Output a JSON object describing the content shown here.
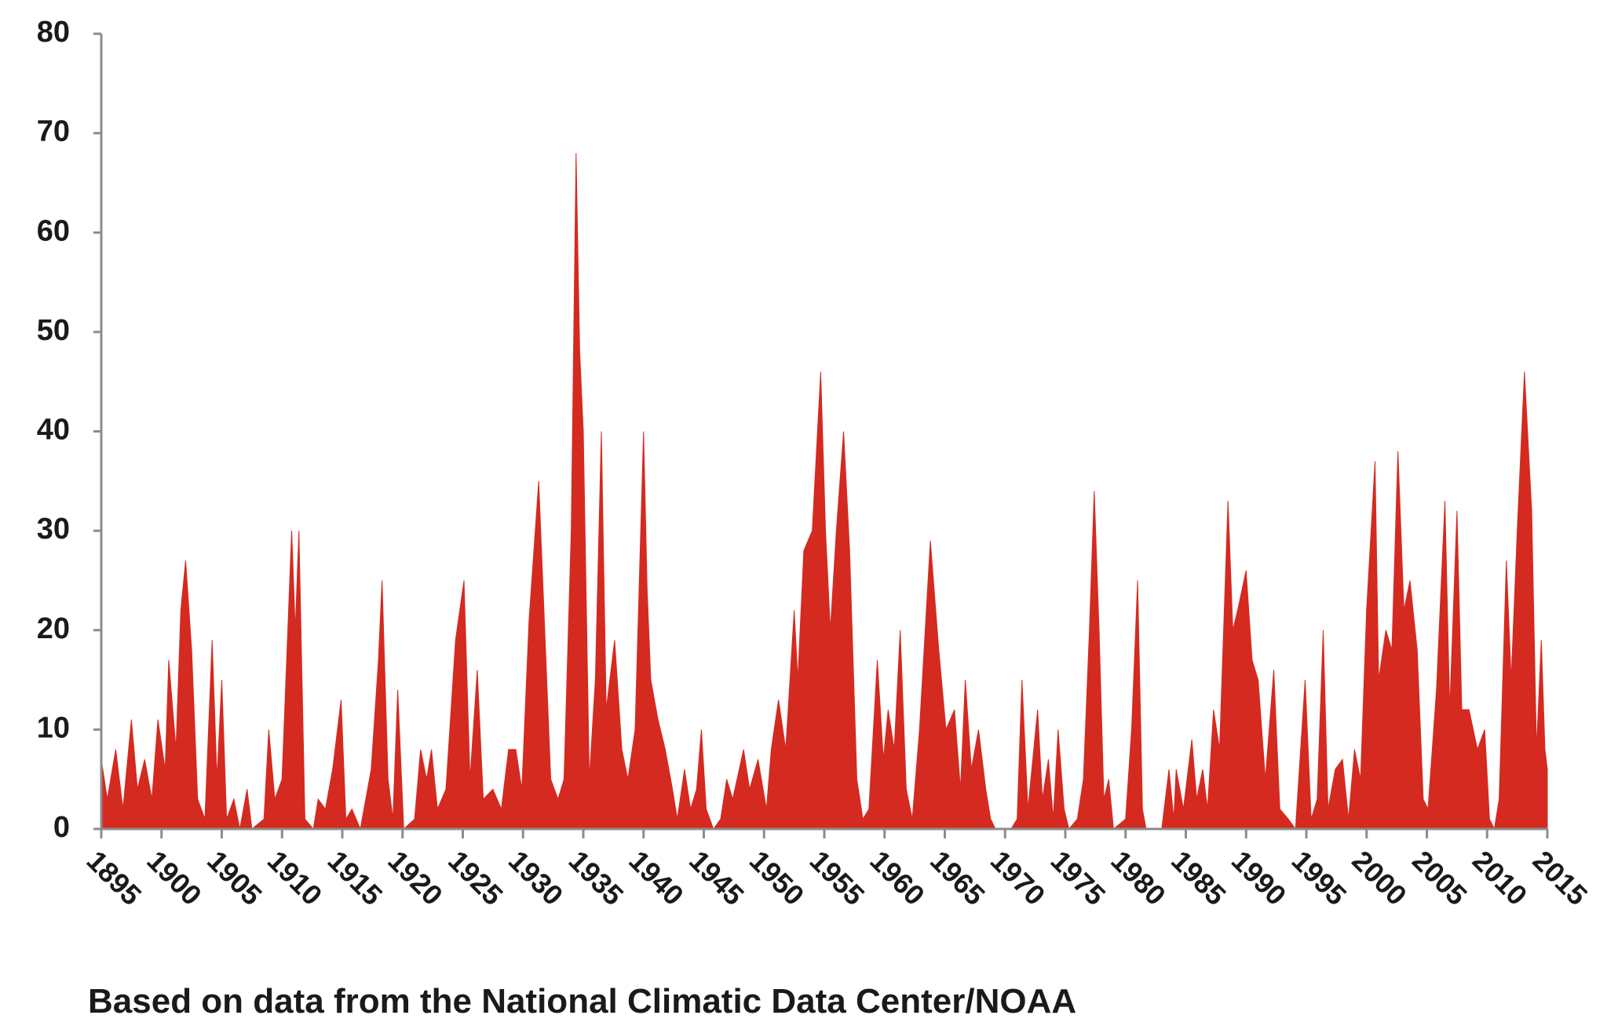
{
  "chart_data": {
    "type": "area",
    "caption": "Based on data from the National Climatic Data Center/NOAA",
    "color": "#d42a20",
    "xlim": [
      1895,
      2015
    ],
    "ylim": [
      0,
      80
    ],
    "xticks": [
      1895,
      1900,
      1905,
      1910,
      1915,
      1920,
      1925,
      1930,
      1935,
      1940,
      1945,
      1950,
      1955,
      1960,
      1965,
      1970,
      1975,
      1980,
      1985,
      1990,
      1995,
      2000,
      2005,
      2010,
      2015
    ],
    "yticks": [
      0,
      10,
      20,
      30,
      40,
      50,
      60,
      70,
      80
    ],
    "x": [
      1895.0,
      1895.5,
      1896.2,
      1896.8,
      1897.5,
      1898.0,
      1898.6,
      1899.2,
      1899.7,
      1900.3,
      1900.6,
      1901.2,
      1901.6,
      1902.0,
      1902.5,
      1903.0,
      1903.6,
      1904.2,
      1904.6,
      1905.0,
      1905.4,
      1906.0,
      1906.5,
      1907.1,
      1907.5,
      1908.5,
      1908.9,
      1909.4,
      1910.0,
      1910.8,
      1911.1,
      1911.4,
      1911.9,
      1912.6,
      1913.0,
      1913.6,
      1914.2,
      1914.9,
      1915.3,
      1915.8,
      1916.5,
      1917.4,
      1918.0,
      1918.3,
      1918.8,
      1919.2,
      1919.6,
      1920.1,
      1921.0,
      1921.5,
      1922.0,
      1922.4,
      1922.9,
      1923.6,
      1924.4,
      1925.1,
      1925.6,
      1926.2,
      1926.7,
      1927.5,
      1928.2,
      1928.8,
      1929.4,
      1929.9,
      1930.5,
      1931.3,
      1931.8,
      1932.3,
      1932.9,
      1933.4,
      1934.0,
      1934.4,
      1934.7,
      1935.0,
      1935.5,
      1936.0,
      1936.5,
      1936.9,
      1937.6,
      1938.2,
      1938.7,
      1939.3,
      1940.0,
      1940.3,
      1940.6,
      1941.2,
      1941.8,
      1942.4,
      1942.8,
      1943.4,
      1943.9,
      1944.4,
      1944.8,
      1945.2,
      1945.8,
      1946.4,
      1946.9,
      1947.4,
      1948.3,
      1948.8,
      1949.5,
      1950.2,
      1950.6,
      1951.2,
      1951.8,
      1952.5,
      1952.8,
      1953.3,
      1954.0,
      1954.7,
      1955.1,
      1955.5,
      1956.0,
      1956.6,
      1957.1,
      1957.7,
      1958.2,
      1958.7,
      1959.4,
      1959.9,
      1960.3,
      1960.8,
      1961.3,
      1961.8,
      1962.3,
      1962.9,
      1963.8,
      1964.5,
      1965.1,
      1965.8,
      1966.3,
      1966.7,
      1967.2,
      1967.8,
      1968.4,
      1968.8,
      1969.2,
      1970.5,
      1971.0,
      1971.4,
      1971.9,
      1972.7,
      1973.1,
      1973.6,
      1974.0,
      1974.4,
      1974.9,
      1975.3,
      1976.0,
      1976.5,
      1977.0,
      1977.4,
      1977.8,
      1978.2,
      1978.6,
      1979.0,
      1980.0,
      1980.5,
      1981.0,
      1981.4,
      1981.7,
      1983.0,
      1983.6,
      1984.0,
      1984.2,
      1984.8,
      1985.5,
      1985.9,
      1986.4,
      1986.8,
      1987.3,
      1987.8,
      1988.5,
      1988.9,
      1989.3,
      1990.0,
      1990.5,
      1991.0,
      1991.6,
      1992.3,
      1992.8,
      1993.5,
      1994.1,
      1994.9,
      1995.4,
      1995.9,
      1996.4,
      1996.8,
      1997.4,
      1998.0,
      1998.5,
      1999.0,
      1999.5,
      2000.0,
      2000.7,
      2001.0,
      2001.6,
      2002.1,
      2002.6,
      2003.1,
      2003.6,
      2004.2,
      2004.7,
      2005.1,
      2005.8,
      2006.5,
      2006.9,
      2007.5,
      2007.9,
      2008.5,
      2009.2,
      2009.8,
      2010.2,
      2010.6,
      2011.0,
      2011.6,
      2012.0,
      2012.5,
      2013.1,
      2013.7,
      2014.1,
      2014.5,
      2014.8,
      2015.0
    ],
    "values": [
      7,
      3,
      8,
      2,
      11,
      4,
      7,
      3,
      11,
      6,
      17,
      8,
      22,
      27,
      18,
      3,
      1,
      19,
      5,
      15,
      1,
      3,
      0,
      4,
      0,
      1,
      10,
      3,
      5,
      30,
      20,
      30,
      1,
      0,
      3,
      2,
      6,
      13,
      1,
      2,
      0,
      6,
      17,
      25,
      5,
      1,
      14,
      0,
      1,
      8,
      5,
      8,
      2,
      4,
      19,
      25,
      5,
      16,
      3,
      4,
      2,
      8,
      8,
      4,
      21,
      35,
      20,
      5,
      3,
      5,
      30,
      68,
      48,
      40,
      5,
      15,
      40,
      12,
      19,
      8,
      5,
      10,
      40,
      24,
      15,
      11,
      8,
      4,
      1,
      6,
      2,
      4,
      10,
      2,
      0,
      1,
      5,
      3,
      8,
      4,
      7,
      2,
      8,
      13,
      8,
      22,
      15,
      28,
      30,
      46,
      30,
      20,
      30,
      40,
      28,
      5,
      1,
      2,
      17,
      7,
      12,
      8,
      20,
      4,
      1,
      10,
      29,
      18,
      10,
      12,
      4,
      15,
      6,
      10,
      4,
      1,
      0,
      0,
      1,
      15,
      2,
      12,
      3,
      7,
      1,
      10,
      2,
      0,
      1,
      5,
      20,
      34,
      20,
      3,
      5,
      0,
      1,
      10,
      25,
      2,
      0,
      0,
      6,
      1,
      6,
      2,
      9,
      3,
      6,
      2,
      12,
      8,
      33,
      20,
      22,
      26,
      17,
      15,
      5,
      16,
      2,
      1,
      0,
      15,
      1,
      3,
      20,
      2,
      6,
      7,
      1,
      8,
      5,
      22,
      37,
      15,
      20,
      18,
      38,
      22,
      25,
      18,
      3,
      2,
      14,
      33,
      12,
      32,
      12,
      12,
      8,
      10,
      1,
      0,
      3,
      27,
      15,
      30,
      46,
      32,
      8,
      19,
      8,
      6
    ]
  }
}
